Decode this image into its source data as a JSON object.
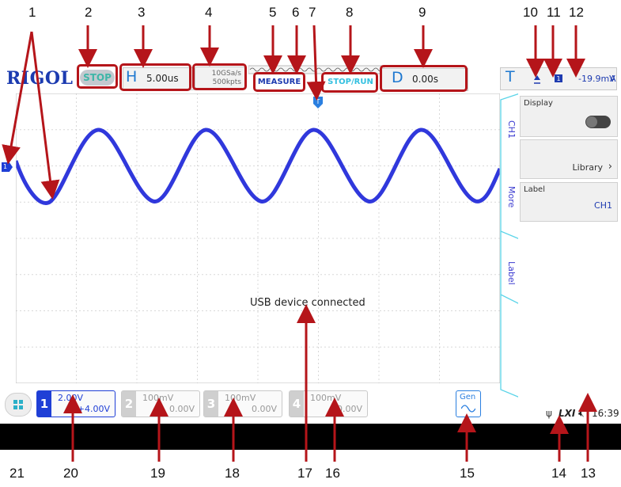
{
  "callouts_top": [
    "1",
    "2",
    "3",
    "4",
    "5",
    "6",
    "7",
    "8",
    "9",
    "10",
    "11",
    "12"
  ],
  "callouts_bottom": [
    "21",
    "20",
    "19",
    "18",
    "17",
    "16",
    "15",
    "14",
    "13"
  ],
  "brand": "RIGOL",
  "run_status": "STOP",
  "horizontal": {
    "letter": "H",
    "value": "5.00us"
  },
  "sample": {
    "rate": "10GSa/s",
    "depth": "500kpts"
  },
  "measure_label": "MEASURE",
  "stoprun_label": "STOP/RUN",
  "delay": {
    "letter": "D",
    "value": "0.00s"
  },
  "trigger": {
    "letter": "T",
    "source": "1",
    "level": "-19.9mV",
    "mode": "A"
  },
  "side_tabs": [
    "CH1",
    "More",
    "Label"
  ],
  "menu": {
    "display_label": "Display",
    "library_label": "Library",
    "label_title": "Label",
    "label_value": "CH1"
  },
  "message": "USB device connected",
  "channels": [
    {
      "num": "1",
      "scale": "2.00V",
      "offset": "+4.00V",
      "color": "#1f3fd6"
    },
    {
      "num": "2",
      "scale": "100mV",
      "offset": "0.00V",
      "color": "#c8c8c8"
    },
    {
      "num": "3",
      "scale": "100mV",
      "offset": "0.00V",
      "color": "#c8c8c8"
    },
    {
      "num": "4",
      "scale": "100mV",
      "offset": "0.00V",
      "color": "#c8c8c8"
    }
  ],
  "gen_label": "Gen",
  "lxi_label": "LXI",
  "time": "16:39",
  "colors": {
    "accent": "#1f3fd6",
    "callout": "#b5151a",
    "tabs": "#5ad4e8"
  }
}
